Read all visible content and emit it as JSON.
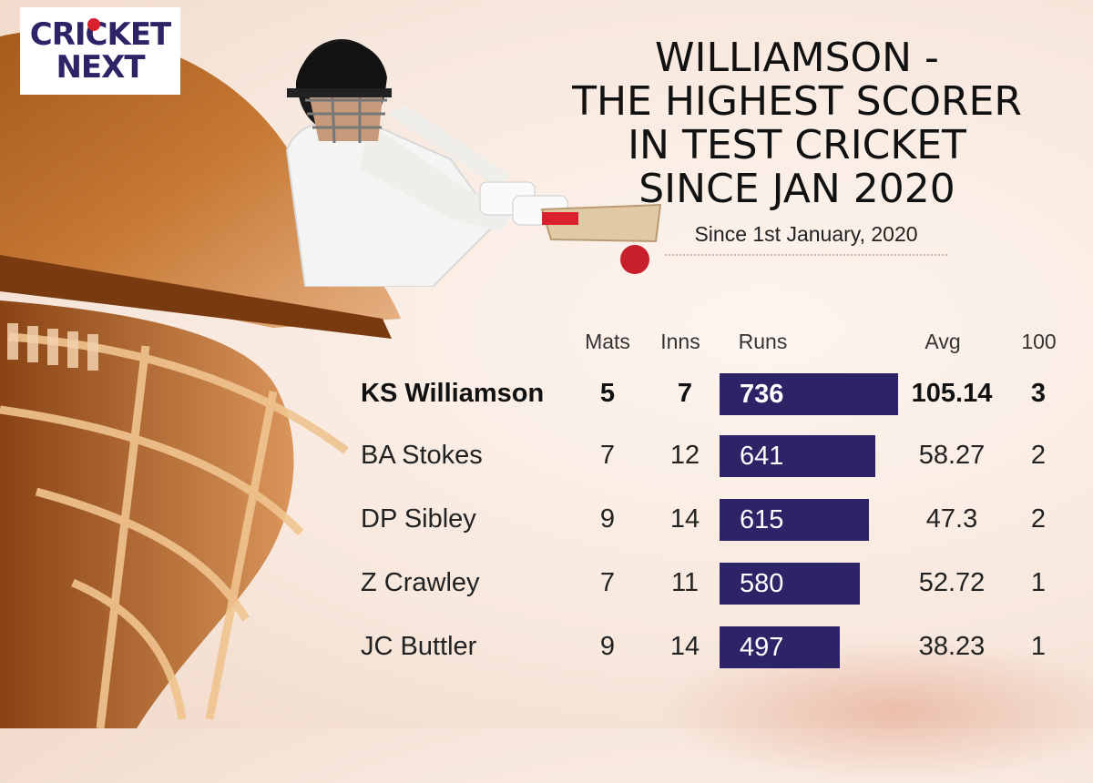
{
  "logo": {
    "line1": "CRICKET",
    "line2": "NEXT"
  },
  "headline": {
    "lines": [
      "WILLIAMSON -",
      "THE HIGHEST SCORER",
      "IN TEST CRICKET",
      "SINCE JAN 2020"
    ],
    "subtitle": "Since 1st January, 2020"
  },
  "table": {
    "headers": {
      "mats": "Mats",
      "inns": "Inns",
      "runs": "Runs",
      "avg": "Avg",
      "hundreds": "100"
    }
  },
  "chart_data": {
    "type": "bar",
    "categories": [
      "KS Williamson",
      "BA Stokes",
      "DP Sibley",
      "Z Crawley",
      "JC Buttler"
    ],
    "series": [
      {
        "name": "Runs",
        "values": [
          736,
          641,
          615,
          580,
          497
        ]
      }
    ],
    "xlim": [
      0,
      736
    ],
    "rows": [
      {
        "player": "KS Williamson",
        "mats": "5",
        "inns": "7",
        "runs": "736",
        "avg": "105.14",
        "hundreds": "3"
      },
      {
        "player": "BA Stokes",
        "mats": "7",
        "inns": "12",
        "runs": "641",
        "avg": "58.27",
        "hundreds": "2"
      },
      {
        "player": "DP Sibley",
        "mats": "9",
        "inns": "14",
        "runs": "615",
        "avg": "47.3",
        "hundreds": "2"
      },
      {
        "player": "Z Crawley",
        "mats": "7",
        "inns": "11",
        "runs": "580",
        "avg": "52.72",
        "hundreds": "1"
      },
      {
        "player": "JC Buttler",
        "mats": "9",
        "inns": "14",
        "runs": "497",
        "avg": "38.23",
        "hundreds": "1"
      }
    ]
  },
  "colors": {
    "bar": "#2c2466",
    "accent_orange": "#c8762e",
    "ball_red": "#d9202f",
    "background": "#f7e7dc"
  }
}
